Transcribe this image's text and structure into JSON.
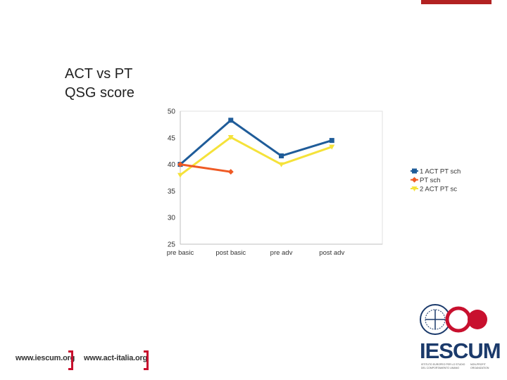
{
  "slide": {
    "title_line1": "ACT vs PT",
    "title_line2": "QSG score"
  },
  "chart_data": {
    "type": "line",
    "categories": [
      "pre basic",
      "post basic",
      "pre adv",
      "post adv"
    ],
    "ylim": [
      25,
      50
    ],
    "yticks": [
      25,
      30,
      35,
      40,
      45,
      50
    ],
    "grid": false,
    "legend_position": "right",
    "series": [
      {
        "name": "1 ACT PT sch",
        "color": "#1f5c99",
        "marker": "square",
        "values": [
          40,
          48.3,
          41.6,
          44.5
        ]
      },
      {
        "name": "PT sch",
        "color": "#ef5a24",
        "marker": "diamond",
        "values": [
          40,
          38.6,
          null,
          null
        ]
      },
      {
        "name": "2 ACT PT sc",
        "color": "#f5e23a",
        "marker": "triangle",
        "values": [
          38,
          45.1,
          40,
          43.3
        ]
      }
    ]
  },
  "footer": {
    "link1": "www.iescum.org",
    "link2": "www.act-italia.org"
  },
  "logo": {
    "name": "IESCUM",
    "badge_text": "",
    "tagline_left": [
      "ISTITUTO EUROPEO PER LO STUDIO",
      "DEL COMPORTAMENTO UMANO"
    ],
    "tagline_right": [
      "NON-PROFIT",
      "ORGANIZATION"
    ],
    "color_primary": "#1b3a6b",
    "color_accent": "#c8102e"
  }
}
